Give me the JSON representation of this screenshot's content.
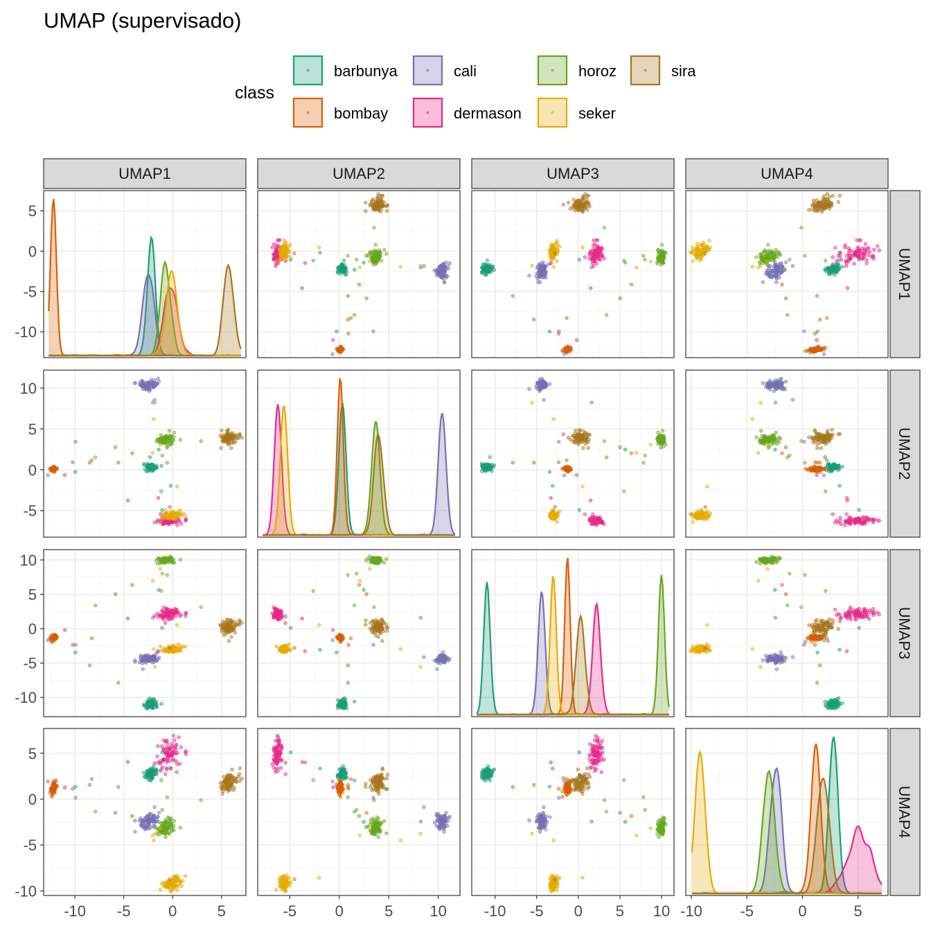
{
  "chart_data": {
    "type": "scatter",
    "title": "UMAP (supervisado)",
    "variables": [
      "UMAP1",
      "UMAP2",
      "UMAP3",
      "UMAP4"
    ],
    "diagonal": "density",
    "off_diagonal": "scatter",
    "grid": true,
    "legend": {
      "title": "class",
      "placement": "top",
      "entries": [
        "barbunya",
        "bombay",
        "cali",
        "dermason",
        "horoz",
        "seker",
        "sira"
      ]
    },
    "ranges": {
      "UMAP1": [
        -13.2,
        7.5
      ],
      "UMAP2": [
        -8.25,
        12.2
      ],
      "UMAP3": [
        -12.8,
        11.5
      ],
      "UMAP4": [
        -10.5,
        7.7
      ]
    },
    "ticks": {
      "UMAP1": [
        -10,
        -5,
        0,
        5
      ],
      "UMAP2": [
        -5,
        0,
        5,
        10
      ],
      "UMAP3": [
        -10,
        -5,
        0,
        5,
        10
      ],
      "UMAP4": [
        -10,
        -5,
        0,
        5
      ]
    },
    "classes": [
      {
        "name": "barbunya",
        "color": "#1B9E77",
        "center": [
          -2.2,
          0.3,
          -11.0,
          2.8
        ],
        "sd": [
          0.3,
          0.3,
          0.35,
          0.3
        ]
      },
      {
        "name": "bombay",
        "color": "#D95F02",
        "center": [
          -12.2,
          0.1,
          -1.3,
          1.2
        ],
        "sd": [
          0.12,
          0.15,
          0.2,
          0.35
        ]
      },
      {
        "name": "cali",
        "color": "#7570B3",
        "center": [
          -2.5,
          10.4,
          -4.4,
          -2.4
        ],
        "sd": [
          0.5,
          0.35,
          0.4,
          0.4
        ]
      },
      {
        "name": "dermason",
        "color": "#E7298A",
        "center": [
          -0.2,
          -6.2,
          2.2,
          5.0
        ],
        "sd": [
          0.6,
          0.3,
          0.45,
          1.0
        ]
      },
      {
        "name": "horoz",
        "color": "#66A61E",
        "center": [
          -0.7,
          3.7,
          10.0,
          -3.0
        ],
        "sd": [
          0.45,
          0.4,
          0.3,
          0.45
        ]
      },
      {
        "name": "seker",
        "color": "#E6AB02",
        "center": [
          -0.1,
          -5.6,
          -3.0,
          -9.2
        ],
        "sd": [
          0.5,
          0.3,
          0.3,
          0.35
        ]
      },
      {
        "name": "sira",
        "color": "#A6761D",
        "center": [
          5.8,
          4.0,
          0.3,
          1.9
        ],
        "sd": [
          0.45,
          0.45,
          0.6,
          0.5
        ]
      }
    ]
  }
}
